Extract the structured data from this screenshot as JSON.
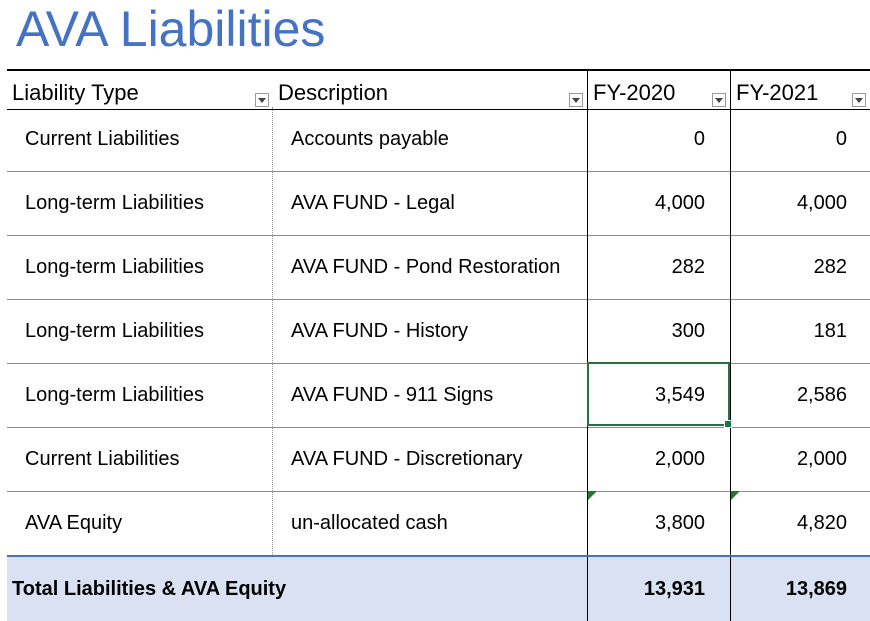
{
  "title": "AVA Liabilities",
  "columns": [
    "Liability Type",
    "Description",
    "FY-2020",
    "FY-2021"
  ],
  "rows": [
    {
      "type": "Current Liabilities",
      "description": "Accounts payable",
      "fy2020": "0",
      "fy2021": "0"
    },
    {
      "type": "Long-term Liabilities",
      "description": "AVA FUND - Legal",
      "fy2020": "4,000",
      "fy2021": "4,000"
    },
    {
      "type": "Long-term Liabilities",
      "description": "AVA FUND - Pond Restoration",
      "fy2020": "282",
      "fy2021": "282"
    },
    {
      "type": "Long-term Liabilities",
      "description": "AVA FUND - History",
      "fy2020": "300",
      "fy2021": "181"
    },
    {
      "type": "Long-term Liabilities",
      "description": "AVA FUND - 911 Signs",
      "fy2020": "3,549",
      "fy2021": "2,586"
    },
    {
      "type": "Current Liabilities",
      "description": "AVA FUND - Discretionary",
      "fy2020": "2,000",
      "fy2021": "2,000"
    },
    {
      "type": "AVA Equity",
      "description": "un-allocated cash",
      "fy2020": "3,800",
      "fy2021": "4,820"
    }
  ],
  "total": {
    "label": "Total Liabilities & AVA Equity",
    "fy2020": "13,931",
    "fy2021": "13,869"
  },
  "colors": {
    "title": "#4472C4",
    "total_fill": "#D9E1F2",
    "selection": "#217346",
    "comment_indicator": "#1E7B34"
  },
  "icons": {
    "filter": "filter-dropdown-icon",
    "comment": "comment-indicator-icon"
  }
}
